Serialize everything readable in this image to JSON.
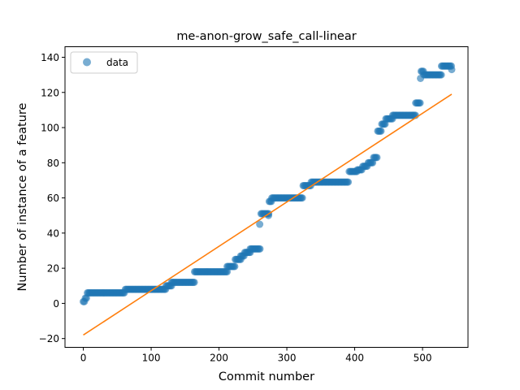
{
  "chart_data": {
    "type": "scatter",
    "title": "me-anon-grow_safe_call-linear",
    "xlabel": "Commit number",
    "ylabel": "Number of instance of a feature",
    "xlim": [
      -27,
      567
    ],
    "ylim": [
      -25,
      146
    ],
    "xticks": [
      0,
      100,
      200,
      300,
      400,
      500
    ],
    "yticks": [
      -20,
      0,
      20,
      40,
      60,
      80,
      100,
      120,
      140
    ],
    "grid": false,
    "legend_position": "top-left",
    "legend": [
      {
        "label": "data",
        "marker": "circle",
        "color": "#1f77b4"
      }
    ],
    "colors": {
      "data": "#1f77b4",
      "fit": "#ff7f0e"
    },
    "step_segments": [
      {
        "x0": 0,
        "x1": 3,
        "y": 1
      },
      {
        "x0": 3,
        "x1": 6,
        "y": 3
      },
      {
        "x0": 6,
        "x1": 62,
        "y": 6
      },
      {
        "x0": 62,
        "x1": 122,
        "y": 8
      },
      {
        "x0": 122,
        "x1": 130,
        "y": 10
      },
      {
        "x0": 130,
        "x1": 164,
        "y": 12
      },
      {
        "x0": 164,
        "x1": 212,
        "y": 18
      },
      {
        "x0": 212,
        "x1": 224,
        "y": 21
      },
      {
        "x0": 224,
        "x1": 232,
        "y": 25
      },
      {
        "x0": 232,
        "x1": 238,
        "y": 27
      },
      {
        "x0": 238,
        "x1": 246,
        "y": 29
      },
      {
        "x0": 246,
        "x1": 262,
        "y": 31
      },
      {
        "x0": 262,
        "x1": 274,
        "y": 51
      },
      {
        "x0": 274,
        "x1": 278,
        "y": 58
      },
      {
        "x0": 278,
        "x1": 324,
        "y": 60
      },
      {
        "x0": 324,
        "x1": 336,
        "y": 67
      },
      {
        "x0": 336,
        "x1": 392,
        "y": 69
      },
      {
        "x0": 392,
        "x1": 404,
        "y": 75
      },
      {
        "x0": 404,
        "x1": 412,
        "y": 76
      },
      {
        "x0": 412,
        "x1": 420,
        "y": 78
      },
      {
        "x0": 420,
        "x1": 428,
        "y": 80
      },
      {
        "x0": 428,
        "x1": 434,
        "y": 83
      },
      {
        "x0": 434,
        "x1": 440,
        "y": 98
      },
      {
        "x0": 440,
        "x1": 446,
        "y": 102
      },
      {
        "x0": 446,
        "x1": 456,
        "y": 105
      },
      {
        "x0": 456,
        "x1": 490,
        "y": 107
      },
      {
        "x0": 490,
        "x1": 498,
        "y": 114
      },
      {
        "x0": 498,
        "x1": 502,
        "y": 132
      },
      {
        "x0": 502,
        "x1": 528,
        "y": 130
      },
      {
        "x0": 528,
        "x1": 544,
        "y": 135
      }
    ],
    "step_spacing": 1.6,
    "outliers": [
      {
        "x": 260,
        "y": 45
      },
      {
        "x": 273,
        "y": 50
      },
      {
        "x": 497,
        "y": 128
      },
      {
        "x": 543,
        "y": 133
      }
    ],
    "fit_line": {
      "x": [
        0,
        543
      ],
      "y": [
        -18,
        119
      ]
    }
  }
}
